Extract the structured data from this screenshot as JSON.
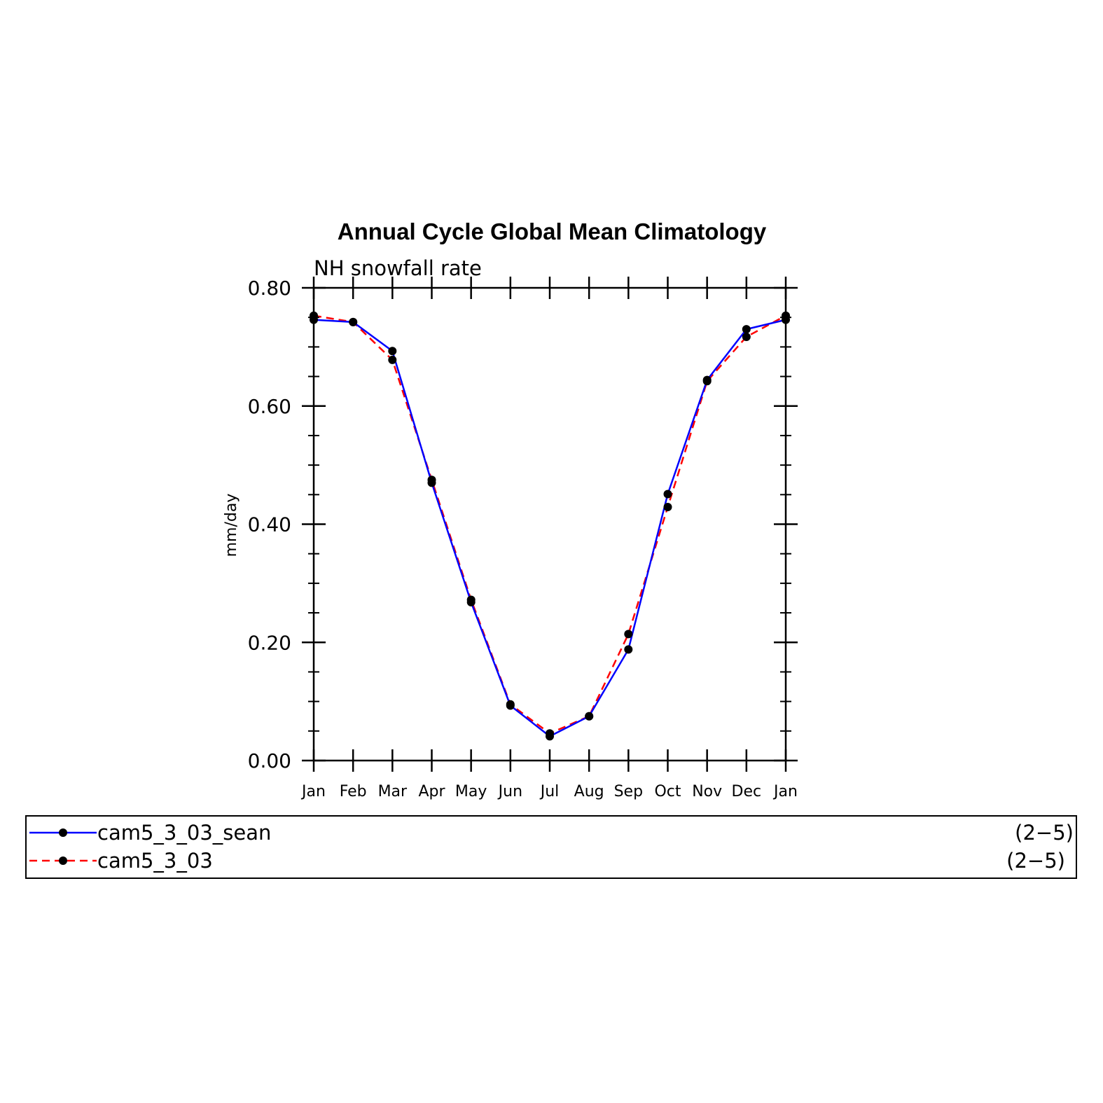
{
  "chart_data": {
    "type": "line",
    "title": "Annual Cycle Global Mean Climatology",
    "subtitle": "NH snowfall rate",
    "ylabel": "mm/day",
    "xlabel": "",
    "categories": [
      "Jan",
      "Feb",
      "Mar",
      "Apr",
      "May",
      "Jun",
      "Jul",
      "Aug",
      "Sep",
      "Oct",
      "Nov",
      "Dec",
      "Jan"
    ],
    "ylim": [
      0,
      0.8
    ],
    "yticks": [
      "0.00",
      "0.20",
      "0.40",
      "0.60",
      "0.80"
    ],
    "grid": false,
    "legend_position": "bottom",
    "series": [
      {
        "name": "cam5_3_03_sean",
        "range_label": "(2−5)",
        "color": "#0000ff",
        "line_style": "solid",
        "values": [
          0.746,
          0.742,
          0.693,
          0.47,
          0.268,
          0.093,
          0.041,
          0.075,
          0.188,
          0.451,
          0.644,
          0.73,
          0.746
        ]
      },
      {
        "name": "cam5_3_03",
        "range_label": "(2−5)",
        "color": "#ff0000",
        "line_style": "dashed",
        "values": [
          0.753,
          0.742,
          0.678,
          0.475,
          0.272,
          0.095,
          0.046,
          0.075,
          0.214,
          0.429,
          0.642,
          0.717,
          0.753
        ]
      }
    ]
  }
}
